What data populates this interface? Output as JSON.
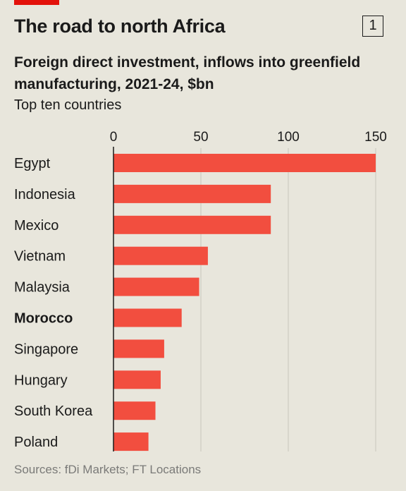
{
  "header": {
    "title": "The road to north Africa",
    "chart_number": "1",
    "subtitle": "Foreign direct investment, inflows into greenfield manufacturing, 2021-24, $bn",
    "subtitle2": "Top ten countries"
  },
  "footer": {
    "source": "Sources: fDi Markets; FT Locations"
  },
  "colors": {
    "bar": "#f24e3f",
    "axis": "#1a1a1a",
    "gridline": "#c8c6bd",
    "background": "#e8e6dc",
    "brand": "#e3120b"
  },
  "chart_data": {
    "type": "bar",
    "orientation": "horizontal",
    "categories": [
      "Egypt",
      "Indonesia",
      "Mexico",
      "Vietnam",
      "Malaysia",
      "Morocco",
      "Singapore",
      "Hungary",
      "South Korea",
      "Poland"
    ],
    "values": [
      150,
      90,
      90,
      54,
      49,
      39,
      29,
      27,
      24,
      20
    ],
    "highlight": "Morocco",
    "xlim": [
      0,
      150
    ],
    "xticks": [
      0,
      50,
      100,
      150
    ],
    "axis_position": "top",
    "grid": true,
    "legend": "none"
  }
}
